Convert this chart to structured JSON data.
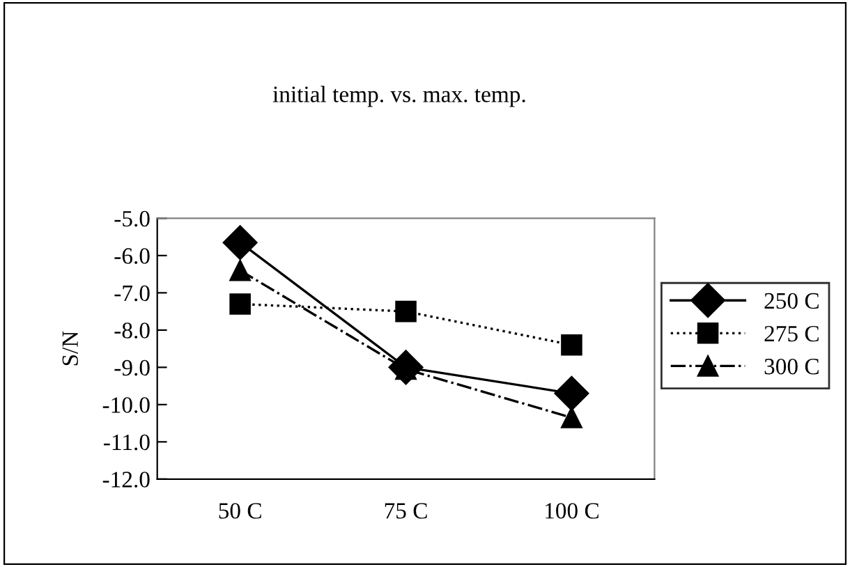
{
  "chart_data": {
    "type": "line",
    "title": "initial temp. vs. max. temp.",
    "ylabel": "S/N",
    "categories": [
      "50 C",
      "75 C",
      "100 C"
    ],
    "series": [
      {
        "name": "250 C",
        "color": "#000000",
        "values": [
          -5.65,
          -9.0,
          -9.7
        ],
        "marker": "diamond",
        "line_style": "solid"
      },
      {
        "name": "275 C",
        "color": "#000000",
        "values": [
          -7.3,
          -7.5,
          -8.4
        ],
        "marker": "square",
        "line_style": "dotted"
      },
      {
        "name": "300 C",
        "color": "#000000",
        "values": [
          -6.4,
          -9.05,
          -10.35
        ],
        "marker": "triangle",
        "line_style": "dashdot"
      }
    ],
    "ylim": [
      -12,
      -5
    ],
    "yticks": [
      {
        "value": -12,
        "label": "-12.0"
      },
      {
        "value": -11,
        "label": "-11.0"
      },
      {
        "value": -10,
        "label": "-10.0"
      },
      {
        "value": -9,
        "label": "-9.0"
      },
      {
        "value": -8,
        "label": "-8.0"
      },
      {
        "value": -7,
        "label": "-7.0"
      },
      {
        "value": -6,
        "label": "-6.0"
      },
      {
        "value": -5,
        "label": "-5.0"
      }
    ],
    "grid": false,
    "legend": "right"
  }
}
